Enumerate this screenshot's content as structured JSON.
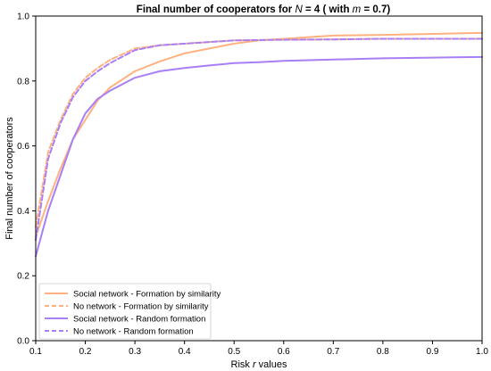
{
  "chart_data": {
    "type": "line",
    "title": "Final number of cooperators for N = 4 ( with m = 0.7)",
    "title_parts": {
      "prefix": "Final number of cooperators for ",
      "n_symbol": "N",
      "n_value": " = 4 ( with ",
      "m_symbol": "m",
      "m_value": " = 0.7)"
    },
    "xlabel": "Risk r values",
    "xlabel_parts": {
      "before": "Risk ",
      "symbol": "r",
      "after": " values"
    },
    "ylabel": "Final number of cooperators",
    "xlim": [
      0.1,
      1.0
    ],
    "ylim": [
      0.0,
      1.0
    ],
    "xticks": [
      0.1,
      0.2,
      0.3,
      0.4,
      0.5,
      0.6,
      0.7,
      0.8,
      0.9,
      1.0
    ],
    "xtick_labels": [
      "0.1",
      "0.2",
      "0.3",
      "0.4",
      "0.5",
      "0.6",
      "0.7",
      "0.8",
      "0.9",
      "1.0"
    ],
    "yticks": [
      0.0,
      0.2,
      0.4,
      0.6,
      0.8,
      1.0
    ],
    "ytick_labels": [
      "0.0",
      "0.2",
      "0.4",
      "0.6",
      "0.8",
      "1.0"
    ],
    "grid": false,
    "legend_position": "lower-left",
    "x": [
      0.1,
      0.125,
      0.15,
      0.175,
      0.2,
      0.225,
      0.25,
      0.3,
      0.35,
      0.4,
      0.45,
      0.5,
      0.55,
      0.6,
      0.7,
      0.8,
      0.9,
      1.0
    ],
    "series": [
      {
        "name": "Social network - Formation by similarity",
        "color": "#ffb27f",
        "style": "solid",
        "values": [
          0.32,
          0.43,
          0.53,
          0.62,
          0.68,
          0.74,
          0.78,
          0.83,
          0.86,
          0.885,
          0.9,
          0.915,
          0.925,
          0.93,
          0.94,
          0.942,
          0.945,
          0.948
        ]
      },
      {
        "name": "No network - Formation by similarity",
        "color": "#ffb27f",
        "style": "dashed",
        "values": [
          0.35,
          0.58,
          0.68,
          0.76,
          0.81,
          0.84,
          0.865,
          0.9,
          0.91,
          0.915,
          0.92,
          0.925,
          0.926,
          0.927,
          0.928,
          0.93,
          0.93,
          0.93
        ]
      },
      {
        "name": "Social network - Random formation",
        "color": "#a97ff5",
        "style": "solid",
        "values": [
          0.26,
          0.4,
          0.51,
          0.62,
          0.7,
          0.745,
          0.77,
          0.81,
          0.83,
          0.84,
          0.848,
          0.855,
          0.858,
          0.862,
          0.866,
          0.87,
          0.872,
          0.874
        ]
      },
      {
        "name": "No network - Random formation",
        "color": "#a97ff5",
        "style": "dashed",
        "values": [
          0.31,
          0.56,
          0.67,
          0.75,
          0.8,
          0.83,
          0.855,
          0.895,
          0.91,
          0.915,
          0.92,
          0.925,
          0.926,
          0.927,
          0.928,
          0.93,
          0.93,
          0.93
        ]
      }
    ]
  }
}
